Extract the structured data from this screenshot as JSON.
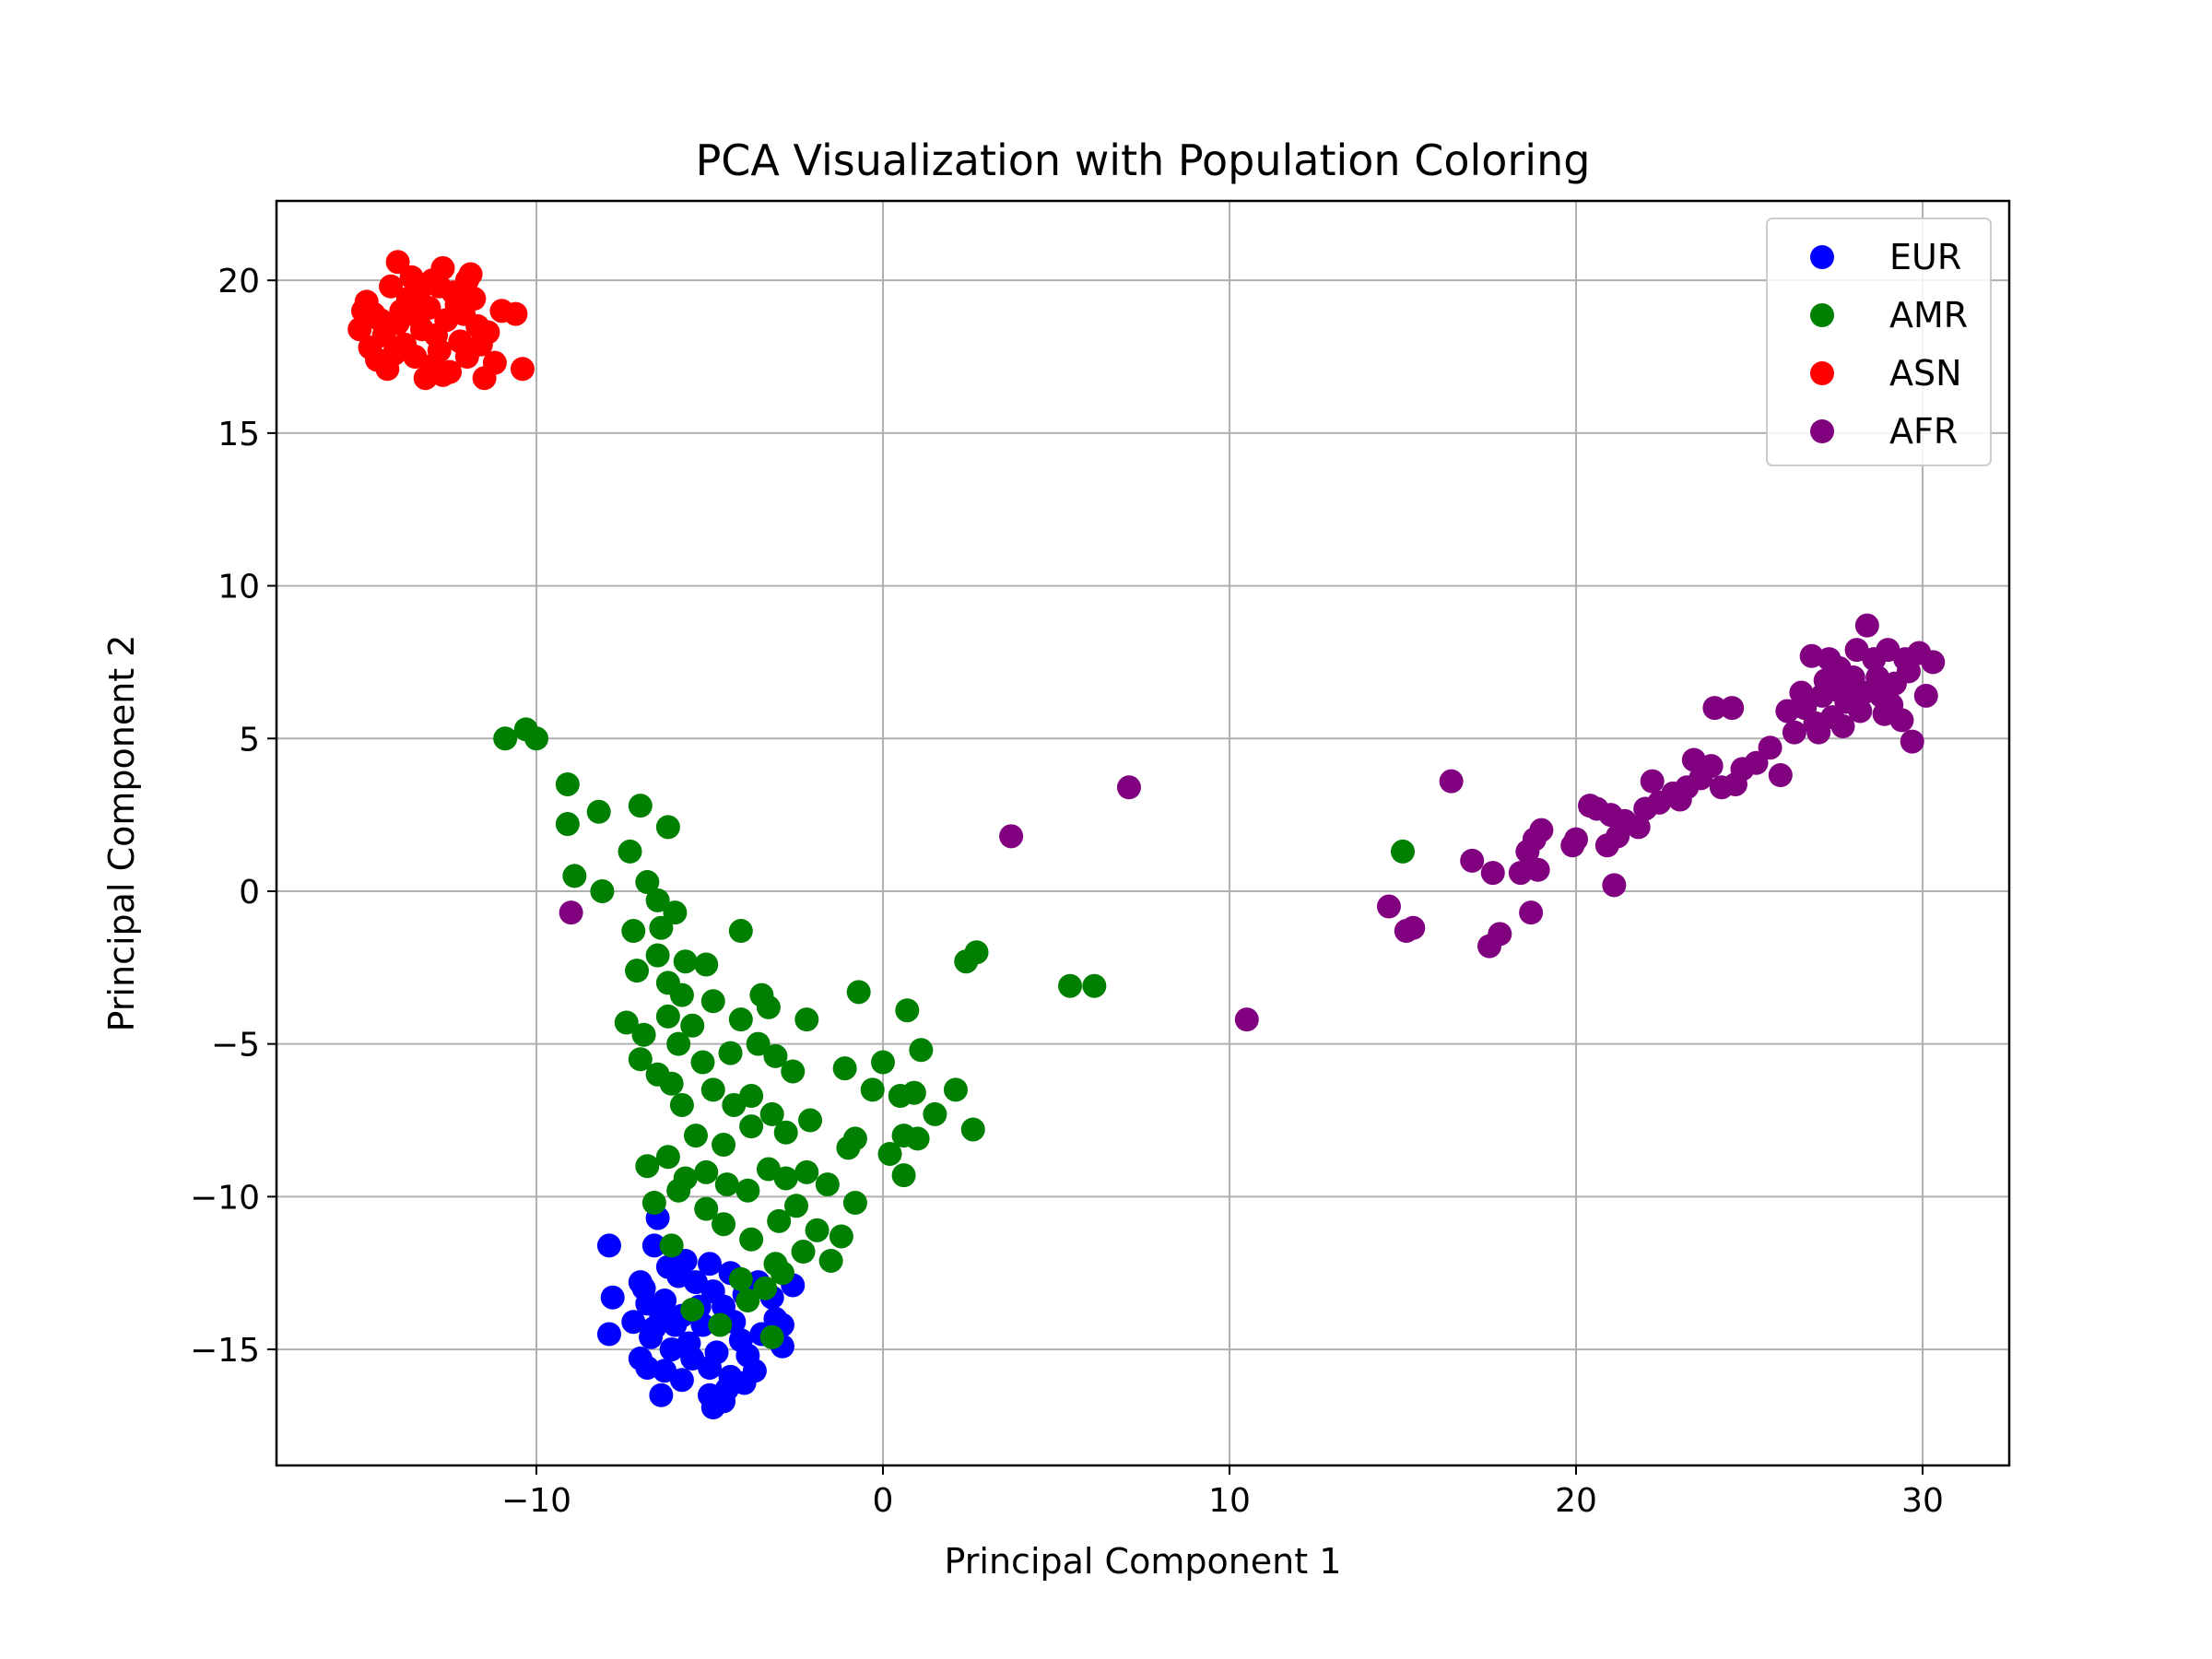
{
  "chart_data": {
    "type": "scatter",
    "title": "PCA Visualization with Population Coloring",
    "xlabel": "Principal Component 1",
    "ylabel": "Principal Component 2",
    "xlim": [
      -17.5,
      32.5
    ],
    "ylim": [
      -18.8,
      22.6
    ],
    "xticks": [
      -10,
      0,
      10,
      20,
      30
    ],
    "yticks": [
      -15,
      -10,
      -5,
      0,
      5,
      10,
      15,
      20
    ],
    "xtick_labels": [
      "−10",
      "0",
      "10",
      "20",
      "30"
    ],
    "ytick_labels": [
      "−15",
      "−10",
      "−5",
      "0",
      "5",
      "10",
      "15",
      "20"
    ],
    "grid": true,
    "legend_position": "top-right",
    "series": [
      {
        "name": "EUR",
        "color": "#0000ff",
        "points": [
          [
            -6.5,
            -10.7
          ],
          [
            -7.9,
            -11.6
          ],
          [
            -6.6,
            -11.6
          ],
          [
            -7.8,
            -13.3
          ],
          [
            -7.9,
            -14.5
          ],
          [
            -2.6,
            -12.9
          ],
          [
            -2.9,
            -14.2
          ],
          [
            -2.9,
            -14.9
          ],
          [
            -6.4,
            -16.5
          ],
          [
            -4.9,
            -16.9
          ],
          [
            -5.0,
            -16.5
          ],
          [
            -4.6,
            -16.7
          ],
          [
            -3.7,
            -15.7
          ],
          [
            -7.0,
            -15.3
          ],
          [
            -7.0,
            -12.8
          ],
          [
            -6.8,
            -13.5
          ],
          [
            -6.2,
            -12.3
          ],
          [
            -5.7,
            -12.1
          ],
          [
            -5.0,
            -12.2
          ],
          [
            -4.4,
            -12.5
          ],
          [
            -3.6,
            -12.8
          ],
          [
            -3.2,
            -13.3
          ],
          [
            -7.2,
            -14.1
          ],
          [
            -6.7,
            -14.6
          ],
          [
            -6.1,
            -15.0
          ],
          [
            -5.5,
            -15.3
          ],
          [
            -4.8,
            -15.1
          ],
          [
            -4.1,
            -14.7
          ],
          [
            -3.5,
            -14.5
          ],
          [
            -3.1,
            -14.0
          ],
          [
            -6.9,
            -13.0
          ],
          [
            -6.3,
            -13.4
          ],
          [
            -5.8,
            -13.9
          ],
          [
            -5.2,
            -14.2
          ],
          [
            -4.6,
            -13.6
          ],
          [
            -4.0,
            -13.2
          ],
          [
            -3.8,
            -12.9
          ],
          [
            -5.4,
            -12.8
          ],
          [
            -6.0,
            -14.2
          ],
          [
            -5.6,
            -14.8
          ],
          [
            -5.0,
            -15.6
          ],
          [
            -4.4,
            -15.9
          ],
          [
            -4.0,
            -16.1
          ],
          [
            -5.8,
            -16.0
          ],
          [
            -6.3,
            -15.7
          ],
          [
            -6.6,
            -14.3
          ],
          [
            -4.9,
            -13.1
          ],
          [
            -5.3,
            -13.6
          ],
          [
            -4.3,
            -14.1
          ],
          [
            -3.9,
            -15.2
          ],
          [
            -6.4,
            -13.9
          ],
          [
            -5.9,
            -12.6
          ],
          [
            -6.8,
            -15.6
          ],
          [
            -4.5,
            -16.3
          ]
        ]
      },
      {
        "name": "AMR",
        "color": "#008000",
        "points": [
          [
            -10.9,
            5.0
          ],
          [
            -10.3,
            5.3
          ],
          [
            -10.0,
            5.0
          ],
          [
            -9.1,
            3.5
          ],
          [
            -9.1,
            2.2
          ],
          [
            -8.9,
            0.5
          ],
          [
            -8.2,
            2.6
          ],
          [
            -8.1,
            0.0
          ],
          [
            -7.3,
            1.3
          ],
          [
            -7.0,
            2.8
          ],
          [
            -6.2,
            2.1
          ],
          [
            -6.8,
            0.3
          ],
          [
            -6.5,
            -0.3
          ],
          [
            -6.0,
            -0.7
          ],
          [
            -6.4,
            -1.2
          ],
          [
            -7.2,
            -1.3
          ],
          [
            -7.1,
            -2.6
          ],
          [
            -6.5,
            -2.1
          ],
          [
            -5.7,
            -2.3
          ],
          [
            -6.2,
            -3.0
          ],
          [
            -5.8,
            -3.4
          ],
          [
            -5.1,
            -2.4
          ],
          [
            -4.1,
            -1.3
          ],
          [
            -0.7,
            -3.3
          ],
          [
            0.7,
            -3.9
          ],
          [
            2.4,
            -2.3
          ],
          [
            2.7,
            -2.0
          ],
          [
            5.4,
            -3.1
          ],
          [
            6.1,
            -3.1
          ],
          [
            15.0,
            1.3
          ],
          [
            -7.4,
            -4.3
          ],
          [
            -6.9,
            -4.7
          ],
          [
            -6.2,
            -4.1
          ],
          [
            -5.5,
            -4.4
          ],
          [
            -4.9,
            -3.6
          ],
          [
            -4.1,
            -4.2
          ],
          [
            -3.5,
            -3.4
          ],
          [
            -3.3,
            -3.8
          ],
          [
            -2.2,
            -4.2
          ],
          [
            -6.1,
            -6.3
          ],
          [
            -7.0,
            -5.5
          ],
          [
            -6.5,
            -6.0
          ],
          [
            -5.9,
            -5.0
          ],
          [
            -5.2,
            -5.6
          ],
          [
            -4.4,
            -5.3
          ],
          [
            -3.6,
            -5.0
          ],
          [
            -2.6,
            -5.9
          ],
          [
            -3.1,
            -5.4
          ],
          [
            -1.1,
            -5.8
          ],
          [
            0.0,
            -5.6
          ],
          [
            1.1,
            -5.2
          ],
          [
            -5.8,
            -7.0
          ],
          [
            -4.9,
            -6.5
          ],
          [
            -4.3,
            -7.0
          ],
          [
            -3.8,
            -6.7
          ],
          [
            -3.2,
            -7.3
          ],
          [
            -2.1,
            -7.5
          ],
          [
            -0.3,
            -6.5
          ],
          [
            0.5,
            -6.7
          ],
          [
            0.9,
            -6.6
          ],
          [
            2.1,
            -6.5
          ],
          [
            -5.4,
            -8.0
          ],
          [
            -4.6,
            -8.3
          ],
          [
            -3.8,
            -7.7
          ],
          [
            -2.8,
            -7.9
          ],
          [
            -1.0,
            -8.4
          ],
          [
            -0.8,
            -8.1
          ],
          [
            0.6,
            -8.0
          ],
          [
            1.0,
            -8.1
          ],
          [
            1.5,
            -7.3
          ],
          [
            2.6,
            -7.8
          ],
          [
            -6.8,
            -9.0
          ],
          [
            -6.2,
            -8.7
          ],
          [
            -5.7,
            -9.4
          ],
          [
            -5.1,
            -9.2
          ],
          [
            -4.5,
            -9.6
          ],
          [
            -3.9,
            -9.8
          ],
          [
            -3.3,
            -9.1
          ],
          [
            -2.8,
            -9.4
          ],
          [
            -2.2,
            -9.2
          ],
          [
            -1.6,
            -9.6
          ],
          [
            -0.8,
            -10.2
          ],
          [
            0.2,
            -8.6
          ],
          [
            0.6,
            -9.3
          ],
          [
            -6.6,
            -10.2
          ],
          [
            -5.9,
            -9.8
          ],
          [
            -5.1,
            -10.4
          ],
          [
            -4.6,
            -10.9
          ],
          [
            -3.8,
            -11.4
          ],
          [
            -3.0,
            -10.8
          ],
          [
            -2.5,
            -10.3
          ],
          [
            -1.9,
            -11.1
          ],
          [
            -1.5,
            -12.1
          ],
          [
            -1.2,
            -11.3
          ],
          [
            -2.3,
            -11.8
          ],
          [
            -3.1,
            -12.2
          ],
          [
            -3.4,
            -13.0
          ],
          [
            -3.9,
            -13.4
          ],
          [
            -4.1,
            -12.7
          ],
          [
            -5.5,
            -13.7
          ],
          [
            -3.2,
            -14.6
          ],
          [
            -4.7,
            -14.2
          ],
          [
            -6.1,
            -11.6
          ],
          [
            -2.9,
            -12.5
          ]
        ]
      },
      {
        "name": "ASN",
        "color": "#ff0000",
        "points": [
          [
            -15.1,
            18.4
          ],
          [
            -14.9,
            19.3
          ],
          [
            -14.6,
            17.4
          ],
          [
            -14.5,
            18.7
          ],
          [
            -14.2,
            19.8
          ],
          [
            -14.0,
            20.6
          ],
          [
            -13.8,
            17.9
          ],
          [
            -13.6,
            18.9
          ],
          [
            -13.4,
            19.6
          ],
          [
            -13.2,
            16.8
          ],
          [
            -13.0,
            20.0
          ],
          [
            -12.9,
            18.2
          ],
          [
            -12.7,
            20.4
          ],
          [
            -12.5,
            17.0
          ],
          [
            -12.3,
            19.2
          ],
          [
            -12.0,
            17.5
          ],
          [
            -11.9,
            20.2
          ],
          [
            -11.7,
            18.5
          ],
          [
            -11.5,
            16.8
          ],
          [
            -11.2,
            17.3
          ],
          [
            -11.0,
            19.0
          ],
          [
            -10.6,
            18.9
          ],
          [
            -10.4,
            17.1
          ],
          [
            -14.8,
            17.8
          ],
          [
            -14.4,
            18.2
          ],
          [
            -14.1,
            17.6
          ],
          [
            -13.9,
            19.0
          ],
          [
            -13.7,
            19.4
          ],
          [
            -13.5,
            17.5
          ],
          [
            -13.3,
            18.4
          ],
          [
            -13.1,
            19.1
          ],
          [
            -12.8,
            17.7
          ],
          [
            -12.6,
            18.7
          ],
          [
            -12.4,
            19.6
          ],
          [
            -12.2,
            18.0
          ],
          [
            -12.1,
            18.9
          ],
          [
            -11.8,
            19.4
          ],
          [
            -11.6,
            17.9
          ],
          [
            -15.0,
            19.0
          ],
          [
            -14.7,
            18.9
          ],
          [
            -13.6,
            20.1
          ],
          [
            -12.8,
            19.8
          ],
          [
            -12.0,
            20.0
          ],
          [
            -11.4,
            18.3
          ],
          [
            -14.3,
            17.1
          ],
          [
            -13.0,
            17.2
          ],
          [
            -12.7,
            16.9
          ],
          [
            -14.0,
            18.6
          ]
        ]
      },
      {
        "name": "AFR",
        "color": "#800080",
        "points": [
          [
            -9.0,
            -0.7
          ],
          [
            3.7,
            1.8
          ],
          [
            7.1,
            3.4
          ],
          [
            10.5,
            -4.2
          ],
          [
            14.6,
            -0.5
          ],
          [
            15.1,
            -1.3
          ],
          [
            15.3,
            -1.2
          ],
          [
            16.4,
            3.6
          ],
          [
            17.0,
            1.0
          ],
          [
            17.6,
            0.6
          ],
          [
            17.5,
            -1.8
          ],
          [
            17.8,
            -1.4
          ],
          [
            18.4,
            0.6
          ],
          [
            18.6,
            1.3
          ],
          [
            18.7,
            -0.7
          ],
          [
            18.8,
            1.7
          ],
          [
            19.0,
            2.0
          ],
          [
            18.9,
            0.7
          ],
          [
            19.9,
            1.5
          ],
          [
            20.0,
            1.7
          ],
          [
            20.4,
            2.8
          ],
          [
            20.6,
            2.7
          ],
          [
            20.9,
            1.5
          ],
          [
            21.0,
            2.5
          ],
          [
            21.2,
            1.8
          ],
          [
            21.4,
            2.3
          ],
          [
            21.1,
            0.2
          ],
          [
            21.8,
            2.1
          ],
          [
            22.0,
            2.7
          ],
          [
            22.2,
            3.6
          ],
          [
            22.4,
            2.9
          ],
          [
            22.8,
            3.2
          ],
          [
            23.0,
            3.0
          ],
          [
            23.2,
            3.4
          ],
          [
            23.4,
            4.3
          ],
          [
            23.6,
            3.7
          ],
          [
            23.9,
            4.1
          ],
          [
            24.0,
            6.0
          ],
          [
            24.2,
            3.4
          ],
          [
            24.5,
            6.0
          ],
          [
            24.6,
            3.5
          ],
          [
            24.8,
            4.0
          ],
          [
            25.2,
            4.2
          ],
          [
            25.6,
            4.7
          ],
          [
            25.9,
            3.8
          ],
          [
            26.1,
            5.9
          ],
          [
            26.3,
            5.2
          ],
          [
            26.5,
            6.5
          ],
          [
            26.8,
            7.7
          ],
          [
            27.0,
            5.2
          ],
          [
            27.2,
            6.9
          ],
          [
            27.4,
            5.7
          ],
          [
            27.6,
            7.3
          ],
          [
            27.8,
            6.2
          ],
          [
            28.0,
            7.0
          ],
          [
            28.2,
            5.9
          ],
          [
            28.4,
            8.7
          ],
          [
            28.6,
            7.6
          ],
          [
            28.8,
            6.4
          ],
          [
            29.0,
            7.9
          ],
          [
            29.2,
            6.8
          ],
          [
            29.4,
            5.6
          ],
          [
            29.6,
            7.2
          ],
          [
            29.7,
            4.9
          ],
          [
            29.9,
            7.8
          ],
          [
            30.1,
            6.4
          ],
          [
            30.3,
            7.5
          ],
          [
            26.6,
            6.0
          ],
          [
            27.1,
            6.4
          ],
          [
            27.5,
            6.6
          ],
          [
            27.9,
            6.8
          ],
          [
            28.3,
            6.5
          ],
          [
            28.7,
            7.0
          ],
          [
            29.1,
            6.1
          ],
          [
            27.7,
            5.4
          ],
          [
            28.9,
            5.8
          ],
          [
            26.9,
            5.5
          ],
          [
            29.5,
            7.6
          ],
          [
            28.1,
            7.9
          ],
          [
            27.3,
            7.6
          ]
        ]
      }
    ]
  }
}
